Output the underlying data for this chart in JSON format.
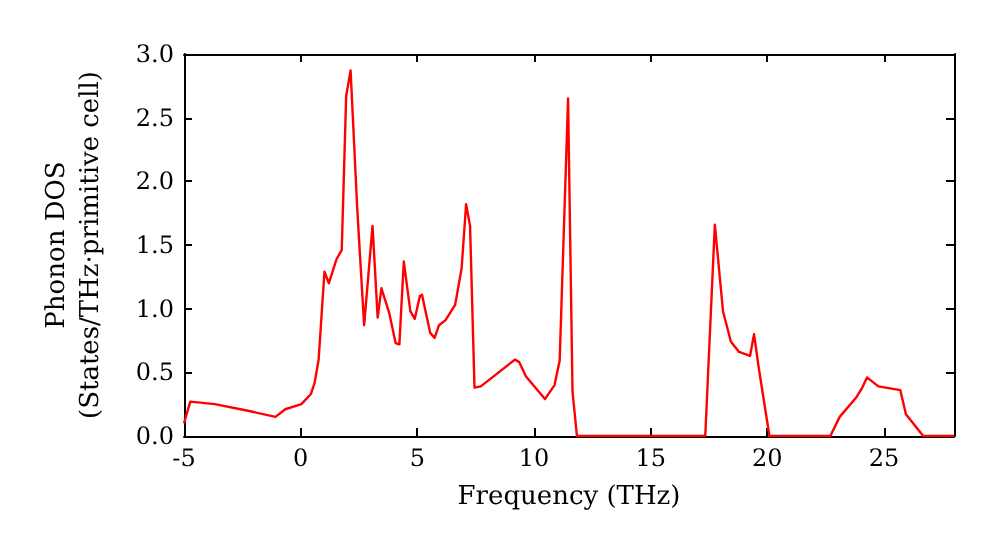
{
  "chart_data": {
    "type": "line",
    "xlabel": "Frequency (THz)",
    "ylabel": "Phonon DOS\n(States/THz·primitive cell)",
    "xlim": [
      -5,
      28
    ],
    "ylim": [
      0,
      3
    ],
    "xticks": [
      -5,
      0,
      5,
      10,
      15,
      20,
      25
    ],
    "yticks": [
      {
        "value": 0,
        "label": "0.0"
      },
      0.5,
      {
        "value": 1,
        "label": "1.0"
      },
      1.5,
      {
        "value": 2,
        "label": "2.0"
      },
      2.5,
      {
        "value": 3,
        "label": "3.0"
      }
    ],
    "grid": false,
    "series": [
      {
        "color": "#ff0000",
        "x": [
          -5,
          -4.73,
          -3.68,
          -2.31,
          -1.08,
          -0.66,
          0.03,
          0.44,
          0.6,
          0.77,
          1.02,
          1.21,
          1.54,
          1.76,
          1.95,
          2.14,
          2.42,
          2.72,
          3.08,
          3.3,
          3.46,
          3.79,
          4.07,
          4.23,
          4.42,
          4.7,
          4.89,
          5.11,
          5.2,
          5.55,
          5.74,
          5.93,
          6.21,
          6.62,
          6.9,
          7.09,
          7.26,
          7.45,
          7.72,
          9.18,
          9.37,
          9.65,
          10.47,
          10.88,
          11.1,
          11.46,
          11.65,
          11.84,
          17.34,
          17.75,
          18.1,
          18.44,
          18.79,
          19.26,
          19.43,
          19.62,
          20.09,
          22.7,
          23.1,
          23.8,
          24.07,
          24.27,
          24.76,
          25.7,
          25.94,
          26.68,
          28
        ],
        "values": [
          0.1,
          0.27,
          0.25,
          0.2,
          0.15,
          0.21,
          0.25,
          0.33,
          0.42,
          0.6,
          1.29,
          1.2,
          1.39,
          1.46,
          2.67,
          2.87,
          1.8,
          0.87,
          1.65,
          0.93,
          1.16,
          0.97,
          0.73,
          0.72,
          1.37,
          0.98,
          0.92,
          1.1,
          1.11,
          0.81,
          0.77,
          0.87,
          0.91,
          1.03,
          1.32,
          1.82,
          1.65,
          0.38,
          0.39,
          0.6,
          0.58,
          0.47,
          0.29,
          0.4,
          0.59,
          2.65,
          0.35,
          0,
          0,
          1.66,
          0.98,
          0.74,
          0.66,
          0.63,
          0.8,
          0.55,
          0,
          0,
          0.15,
          0.3,
          0.38,
          0.46,
          0.39,
          0.36,
          0.17,
          0,
          0
        ]
      }
    ]
  }
}
